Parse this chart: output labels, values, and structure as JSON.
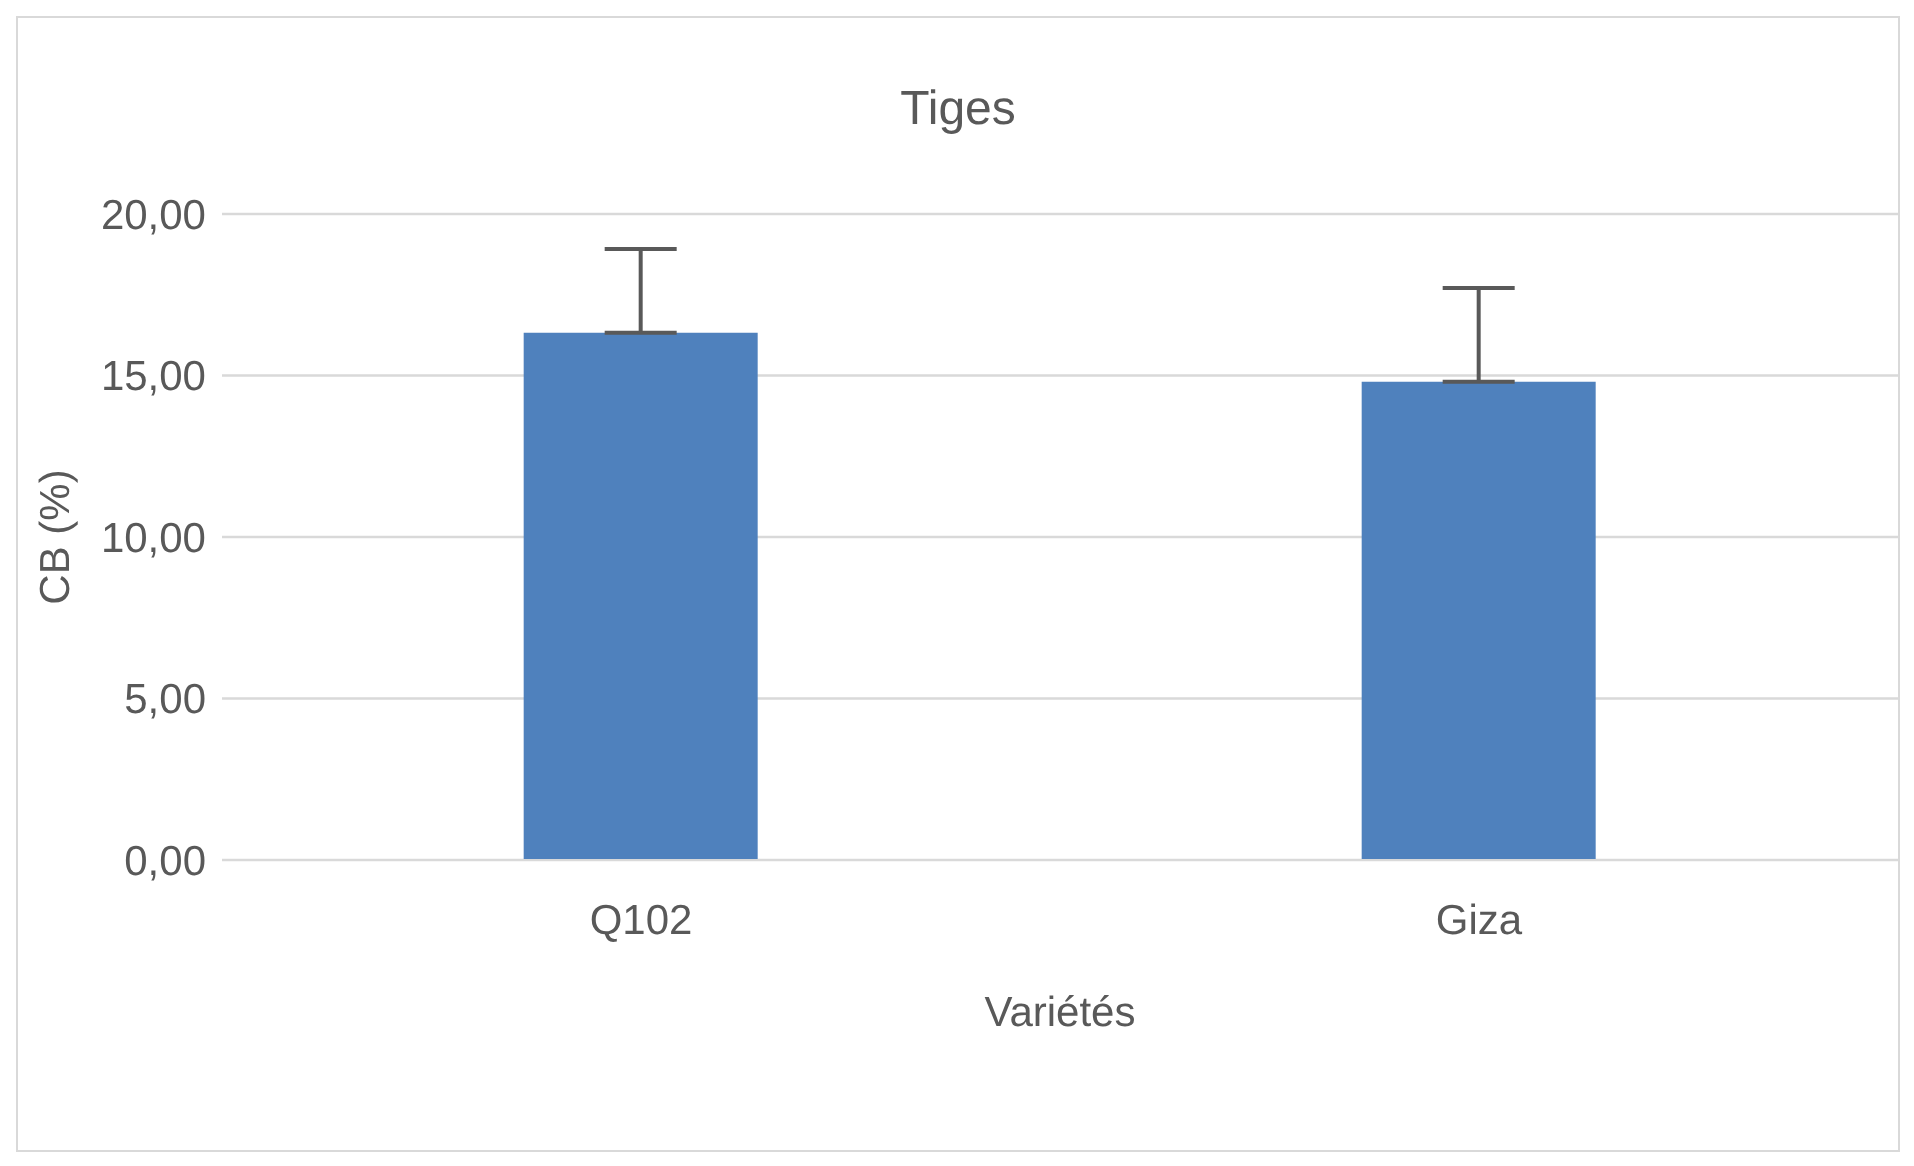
{
  "chart_data": {
    "type": "bar",
    "title": "Tiges",
    "xlabel": "Variétés",
    "ylabel": "CB (%)",
    "categories": [
      "Q102",
      "Giza"
    ],
    "values": [
      16.32,
      14.81
    ],
    "errors": [
      [
        16.32,
        18.92
      ],
      [
        14.81,
        17.71
      ]
    ],
    "color": "#4f81bd",
    "ylim": [
      0,
      20
    ],
    "yticks": [
      {
        "value": 0,
        "label": "0,00"
      },
      {
        "value": 5,
        "label": "5,00"
      },
      {
        "value": 10,
        "label": "10,00"
      },
      {
        "value": 15,
        "label": "15,00"
      },
      {
        "value": 20,
        "label": "20,00"
      }
    ],
    "grid": "y",
    "legend": false
  }
}
